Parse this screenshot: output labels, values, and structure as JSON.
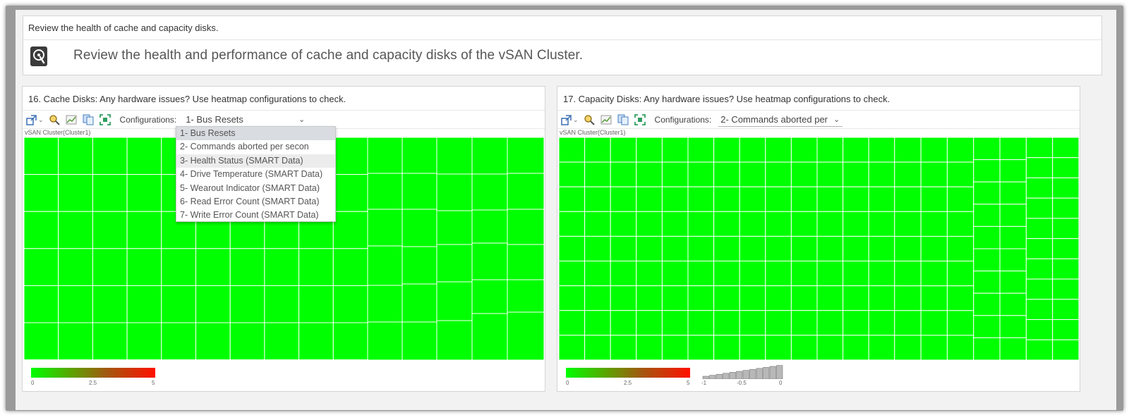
{
  "intro": {
    "title": "Review the health of cache and capacity disks.",
    "description": "Review the health and performance of cache and capacity disks of the vSAN Cluster.",
    "icon": "disk-health-icon"
  },
  "cache_panel": {
    "title": "16. Cache Disks: Any hardware issues? Use heatmap configurations to check.",
    "configurations_label": "Configurations:",
    "selected_configuration": "1- Bus Resets",
    "cluster_label": "vSAN Cluster(Cluster1)",
    "dropdown_open": true,
    "dropdown_options": [
      "1- Bus Resets",
      "2- Commands aborted per secon",
      "3- Health Status (SMART Data)",
      "4- Drive Temperature (SMART Data)",
      "5- Wearout Indicator (SMART Data)",
      "6- Read Error Count (SMART Data)",
      "7- Write Error Count (SMART Data)"
    ],
    "legend": {
      "min": "0",
      "mid": "2.5",
      "max": "5"
    }
  },
  "capacity_panel": {
    "title": "17. Capacity Disks: Any hardware issues? Use heatmap configurations to check.",
    "configurations_label": "Configurations:",
    "selected_configuration": "2- Commands aborted per",
    "cluster_label": "vSAN Cluster(Cluster1)",
    "legend": {
      "min": "0",
      "mid": "2.5",
      "max": "5"
    },
    "size_legend": {
      "min": "-1",
      "mid": "-0.5",
      "max": "0"
    }
  },
  "colors": {
    "healthy": "#00ff00",
    "critical": "#ff1000",
    "accent_underline": "#6b8dc4"
  }
}
